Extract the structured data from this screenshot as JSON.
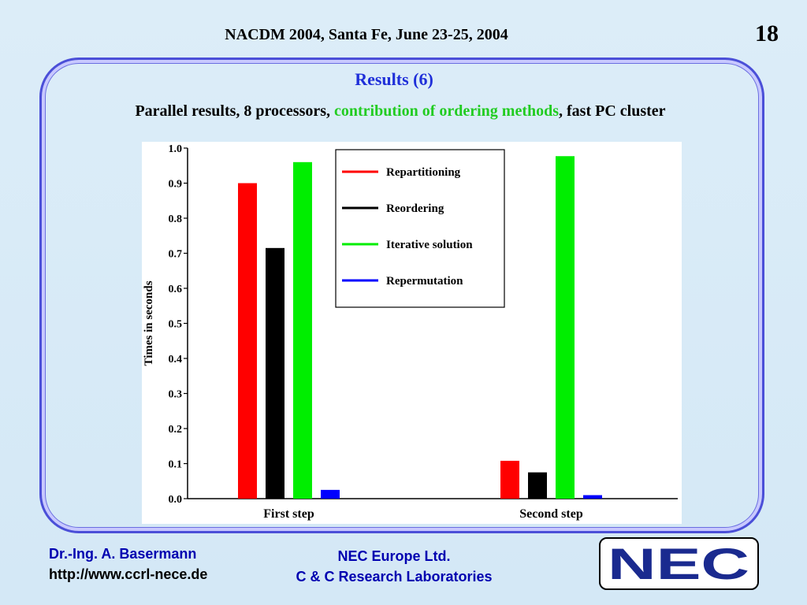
{
  "header": {
    "conference": "NACDM 2004, Santa Fe, June 23-25, 2004",
    "slide_number": "18"
  },
  "slide": {
    "heading": "Results (6)",
    "subtitle_pre": "Parallel results, 8 processors, ",
    "subtitle_highlight": "contribution of ordering methods",
    "subtitle_post": ", fast PC cluster"
  },
  "footer": {
    "author": "Dr.-Ing. A. Basermann",
    "url": "http://www.ccrl-nece.de",
    "org_line1": "NEC Europe Ltd.",
    "org_line2": "C & C Research Laboratories",
    "logo_text": "NEC"
  },
  "chart_data": {
    "type": "bar",
    "categories": [
      "First step",
      "Second step"
    ],
    "ylabel": "Times in seconds",
    "ylim": [
      0,
      1.0
    ],
    "yticks": [
      "0.0",
      "0.1",
      "0.2",
      "0.3",
      "0.4",
      "0.5",
      "0.6",
      "0.7",
      "0.8",
      "0.9",
      "1.0"
    ],
    "legend_position": "top-center",
    "series": [
      {
        "name": "Repartitioning",
        "color": "#ff0000",
        "values": [
          0.9,
          0.108
        ]
      },
      {
        "name": "Reordering",
        "color": "#000000",
        "values": [
          0.715,
          0.075
        ]
      },
      {
        "name": "Iterative solution",
        "color": "#00ee00",
        "values": [
          0.96,
          0.977
        ]
      },
      {
        "name": "Repermutation",
        "color": "#0000ff",
        "values": [
          0.025,
          0.01
        ]
      }
    ]
  }
}
